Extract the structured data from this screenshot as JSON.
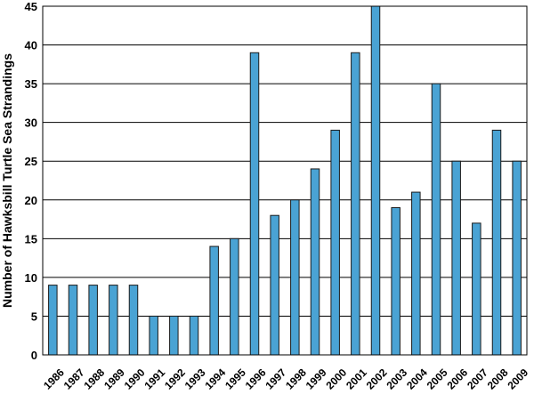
{
  "chart_data": {
    "type": "bar",
    "title": "",
    "xlabel": "",
    "ylabel": "Number of Hawksbill Turtle Sea Strandings",
    "ylim": [
      0,
      45
    ],
    "yticks": [
      0,
      5,
      10,
      15,
      20,
      25,
      30,
      35,
      40,
      45
    ],
    "grid": true,
    "bar_color": "#4aa3d4",
    "bar_edge_color": "#1a1a1a",
    "categories": [
      "1986",
      "1987",
      "1988",
      "1989",
      "1990",
      "1991",
      "1992",
      "1993",
      "1994",
      "1995",
      "1996",
      "1997",
      "1998",
      "1999",
      "2000",
      "2001",
      "2002",
      "2003",
      "2004",
      "2005",
      "2006",
      "2007",
      "2008",
      "2009"
    ],
    "values": [
      9,
      9,
      9,
      9,
      9,
      5,
      5,
      5,
      14,
      15,
      39,
      18,
      20,
      24,
      29,
      39,
      45,
      19,
      21,
      35,
      25,
      17,
      29,
      25
    ]
  }
}
